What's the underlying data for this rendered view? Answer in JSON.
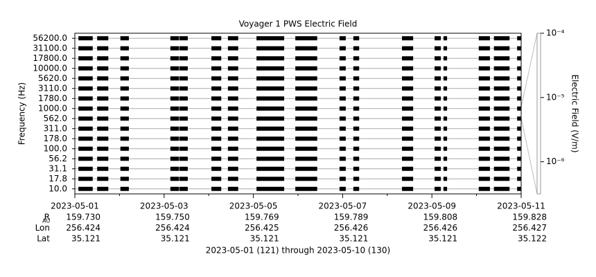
{
  "chart_data": {
    "type": "coverage",
    "title": "Voyager 1 PWS Electric Field",
    "ylabel": "Frequency (Hz)",
    "categories": [
      "10.0",
      "17.8",
      "31.1",
      "56.2",
      "100.0",
      "178.0",
      "311.0",
      "562.0",
      "1000.0",
      "1780.0",
      "3110.0",
      "5620.0",
      "10000.0",
      "17800.0",
      "31100.0",
      "56200.0"
    ],
    "xlim": [
      121,
      131
    ],
    "xticks": [
      {
        "value": 121,
        "label": "2023-05-01"
      },
      {
        "value": 123,
        "label": "2023-05-03"
      },
      {
        "value": 125,
        "label": "2023-05-05"
      },
      {
        "value": 127,
        "label": "2023-05-07"
      },
      {
        "value": 129,
        "label": "2023-05-09"
      },
      {
        "value": 131,
        "label": "2023-05-11"
      }
    ],
    "xminorticks": [
      122,
      124,
      126,
      128,
      130
    ],
    "coverage": [
      [
        121.08,
        121.4
      ],
      [
        121.5,
        121.75
      ],
      [
        122.02,
        122.21
      ],
      [
        123.14,
        123.33
      ],
      [
        123.34,
        123.53
      ],
      [
        124.06,
        124.28
      ],
      [
        124.43,
        124.66
      ],
      [
        125.07,
        125.69
      ],
      [
        125.94,
        126.43
      ],
      [
        126.93,
        127.07
      ],
      [
        127.24,
        127.37
      ],
      [
        128.33,
        128.58
      ],
      [
        129.06,
        129.2
      ],
      [
        129.26,
        129.34
      ],
      [
        130.05,
        130.3
      ],
      [
        130.39,
        130.74
      ],
      [
        130.91,
        131.0
      ]
    ],
    "color": "#000000",
    "ephemeris": [
      {
        "name": "R",
        "sub": "AU",
        "values": [
          "159.730",
          "159.750",
          "159.769",
          "159.789",
          "159.808",
          "159.828"
        ]
      },
      {
        "name": "Lon",
        "values": [
          "256.424",
          "256.424",
          "256.425",
          "256.426",
          "256.426",
          "256.427"
        ]
      },
      {
        "name": "Lat",
        "values": [
          "35.121",
          "35.121",
          "35.121",
          "35.121",
          "35.121",
          "35.122"
        ]
      }
    ],
    "xlabel": "2023-05-01 (121) through 2023-05-10 (130)",
    "colorbar": {
      "label": "Electric Field (V/m)",
      "log": true,
      "lim": [
        3.16e-07,
        0.0001
      ],
      "ticks": [
        {
          "value": 0.0001,
          "label": "10⁻⁴"
        },
        {
          "value": 1e-05,
          "label": "10⁻⁵"
        },
        {
          "value": 1e-06,
          "label": "10⁻⁶"
        }
      ]
    }
  }
}
